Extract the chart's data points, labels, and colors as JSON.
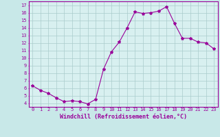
{
  "x": [
    0,
    1,
    2,
    3,
    4,
    5,
    6,
    7,
    8,
    9,
    10,
    11,
    12,
    13,
    14,
    15,
    16,
    17,
    18,
    19,
    20,
    21,
    22,
    23
  ],
  "y": [
    6.3,
    5.7,
    5.3,
    4.7,
    4.2,
    4.3,
    4.2,
    3.9,
    4.5,
    8.5,
    10.8,
    12.1,
    14.0,
    16.1,
    15.9,
    16.0,
    16.2,
    16.8,
    14.6,
    12.6,
    12.6,
    12.1,
    12.0,
    11.2
  ],
  "line_color": "#990099",
  "marker": "*",
  "marker_size": 3,
  "bg_color": "#c8e8e8",
  "plot_bg_color": "#d8f0f0",
  "grid_color": "#aacccc",
  "xlabel": "Windchill (Refroidissement éolien,°C)",
  "xlabel_color": "#990099",
  "ylabel_ticks": [
    4,
    5,
    6,
    7,
    8,
    9,
    10,
    11,
    12,
    13,
    14,
    15,
    16,
    17
  ],
  "xlim": [
    -0.5,
    23.5
  ],
  "ylim": [
    3.5,
    17.5
  ],
  "xtick_labels": [
    "0",
    "1",
    "2",
    "3",
    "4",
    "5",
    "6",
    "7",
    "8",
    "9",
    "10",
    "11",
    "12",
    "13",
    "14",
    "15",
    "16",
    "17",
    "18",
    "19",
    "20",
    "21",
    "22",
    "23"
  ],
  "axis_color": "#990099",
  "tick_color": "#990099",
  "tick_fontsize": 5,
  "xlabel_fontsize": 6,
  "separator_color": "#880088"
}
